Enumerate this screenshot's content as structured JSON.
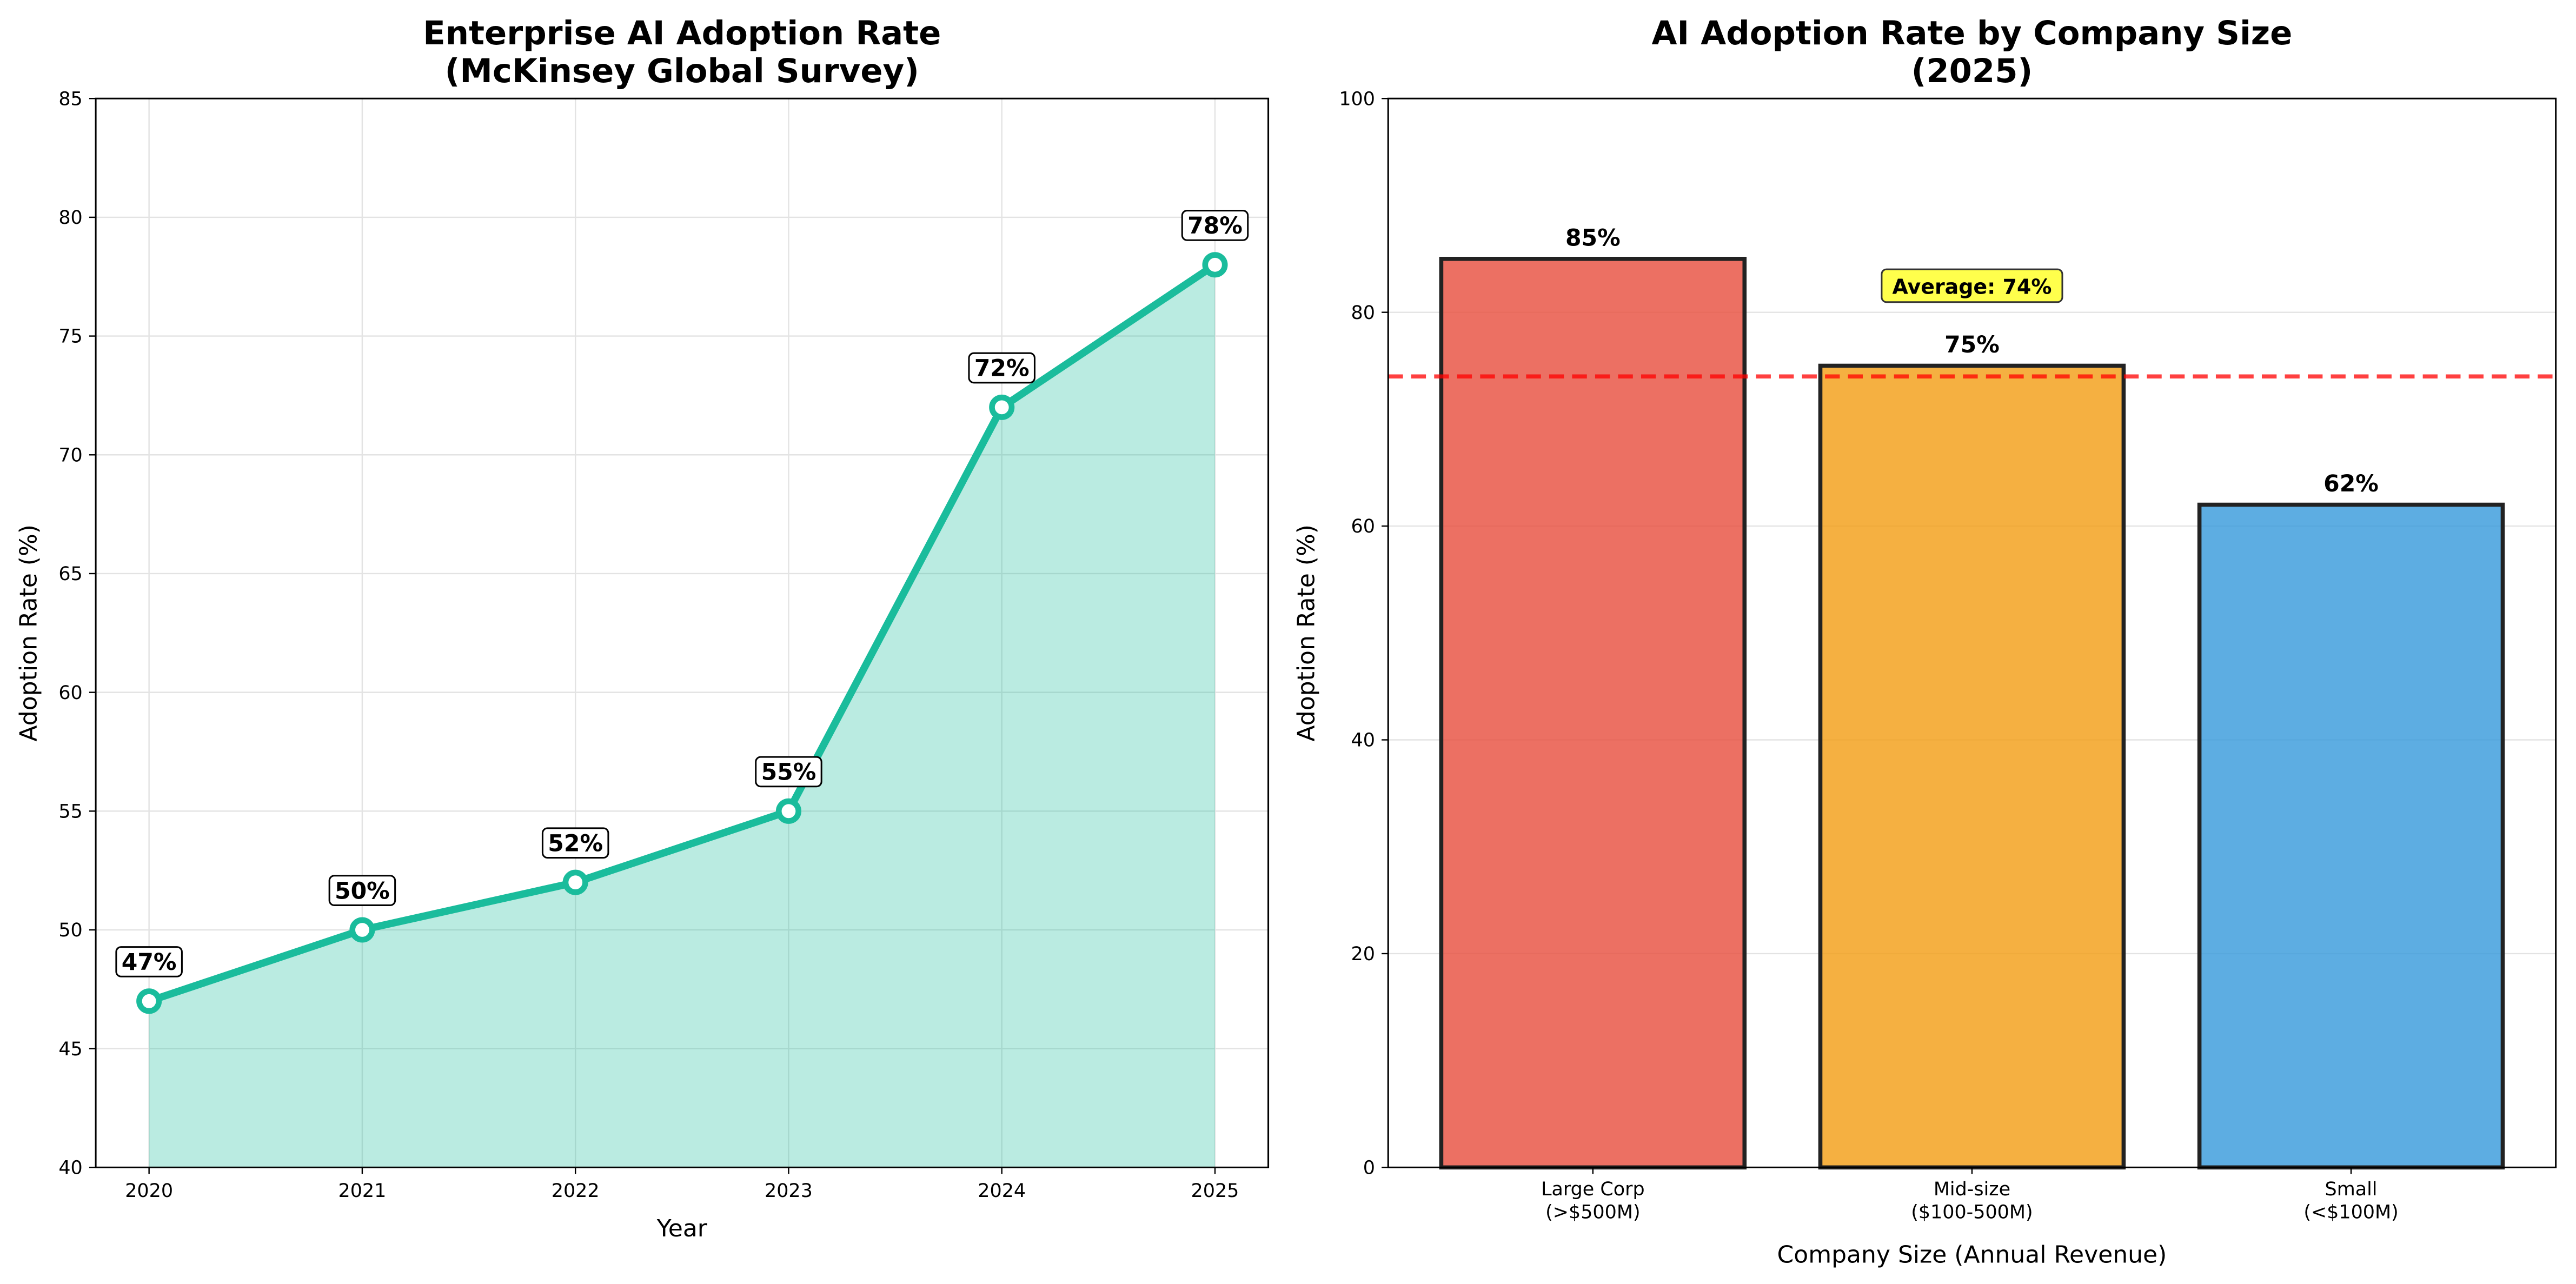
{
  "chart_data": [
    {
      "type": "line",
      "title": "Enterprise AI Adoption Rate\n(McKinsey Global Survey)",
      "title_lines": [
        "Enterprise AI Adoption Rate",
        "(McKinsey Global Survey)"
      ],
      "xlabel": "Year",
      "ylabel": "Adoption Rate (%)",
      "x": [
        2020,
        2021,
        2022,
        2023,
        2024,
        2025
      ],
      "y": [
        47,
        50,
        52,
        55,
        72,
        78
      ],
      "data_labels": [
        "47%",
        "50%",
        "52%",
        "55%",
        "72%",
        "78%"
      ],
      "xticks": [
        "2020",
        "2021",
        "2022",
        "2023",
        "2024",
        "2025"
      ],
      "yticks": [
        "40",
        "45",
        "50",
        "55",
        "60",
        "65",
        "70",
        "75",
        "80",
        "85"
      ],
      "xlim": [
        2019.75,
        2025.25
      ],
      "ylim": [
        40,
        85
      ],
      "grid": true,
      "area_fill": true,
      "color": "#1abc9c"
    },
    {
      "type": "bar",
      "title": "AI Adoption Rate by Company Size\n(2025)",
      "title_lines": [
        "AI Adoption Rate by Company Size",
        "(2025)"
      ],
      "xlabel": "Company Size (Annual Revenue)",
      "ylabel": "Adoption Rate (%)",
      "categories": [
        [
          "Large Corp",
          "(>$500M)"
        ],
        [
          "Mid-size",
          "($100-500M)"
        ],
        [
          "Small",
          "(<$100M)"
        ]
      ],
      "values": [
        85,
        75,
        62
      ],
      "data_labels": [
        "85%",
        "75%",
        "62%"
      ],
      "colors": [
        "#e74c3c",
        "#f39c12",
        "#3498db"
      ],
      "yticks": [
        "0",
        "20",
        "40",
        "60",
        "80",
        "100"
      ],
      "ylim": [
        0,
        100
      ],
      "grid": true,
      "reference_line": {
        "value": 74,
        "label": "Average: 74%",
        "color": "#ff0000",
        "style": "dashed"
      },
      "annotation_box_color": "#ffff00"
    }
  ]
}
